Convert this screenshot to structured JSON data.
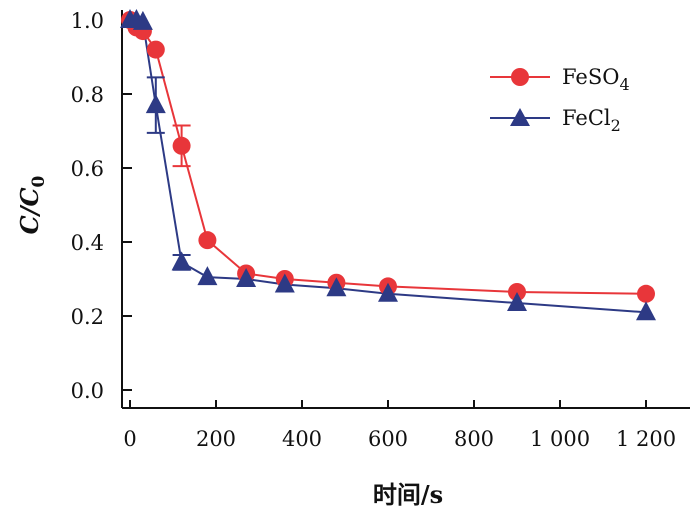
{
  "chart_data": {
    "type": "line",
    "title": "",
    "xlabel": "时间/s",
    "ylabel": "C/C0",
    "ylabel_parts": {
      "main": "C/C",
      "sub": "0"
    },
    "xlim": [
      -10,
      1250
    ],
    "ylim": [
      -0.05,
      1.03
    ],
    "xticks": [
      0,
      200,
      400,
      600,
      800,
      1000,
      1200
    ],
    "xtick_labels": [
      "0",
      "200",
      "400",
      "600",
      "800",
      "1 000",
      "1 200"
    ],
    "yticks": [
      0.0,
      0.2,
      0.4,
      0.6,
      0.8,
      1.0
    ],
    "ytick_labels": [
      "0.0",
      "0.2",
      "0.4",
      "0.6",
      "0.8",
      "1.0"
    ],
    "grid": false,
    "legend_position": "top-right",
    "series": [
      {
        "name": "FeSO4",
        "label_main": "FeSO",
        "label_sub": "4",
        "color": "#e8363a",
        "marker": "circle",
        "x": [
          0,
          15,
          30,
          60,
          120,
          180,
          270,
          360,
          480,
          600,
          900,
          1200
        ],
        "y": [
          1.0,
          0.98,
          0.97,
          0.92,
          0.66,
          0.405,
          0.315,
          0.3,
          0.29,
          0.28,
          0.265,
          0.26
        ],
        "err": [
          0,
          0,
          0,
          0,
          0.055,
          0,
          0,
          0,
          0,
          0,
          0,
          0
        ]
      },
      {
        "name": "FeCl2",
        "label_main": "FeCl",
        "label_sub": "2",
        "color": "#2d3a85",
        "marker": "triangle",
        "x": [
          0,
          15,
          30,
          60,
          120,
          180,
          270,
          360,
          480,
          600,
          900,
          1200
        ],
        "y": [
          1.0,
          1.0,
          0.995,
          0.77,
          0.345,
          0.305,
          0.3,
          0.285,
          0.275,
          0.26,
          0.235,
          0.21
        ],
        "err": [
          0,
          0,
          0,
          0.075,
          0.02,
          0,
          0,
          0,
          0,
          0,
          0,
          0
        ]
      }
    ]
  }
}
